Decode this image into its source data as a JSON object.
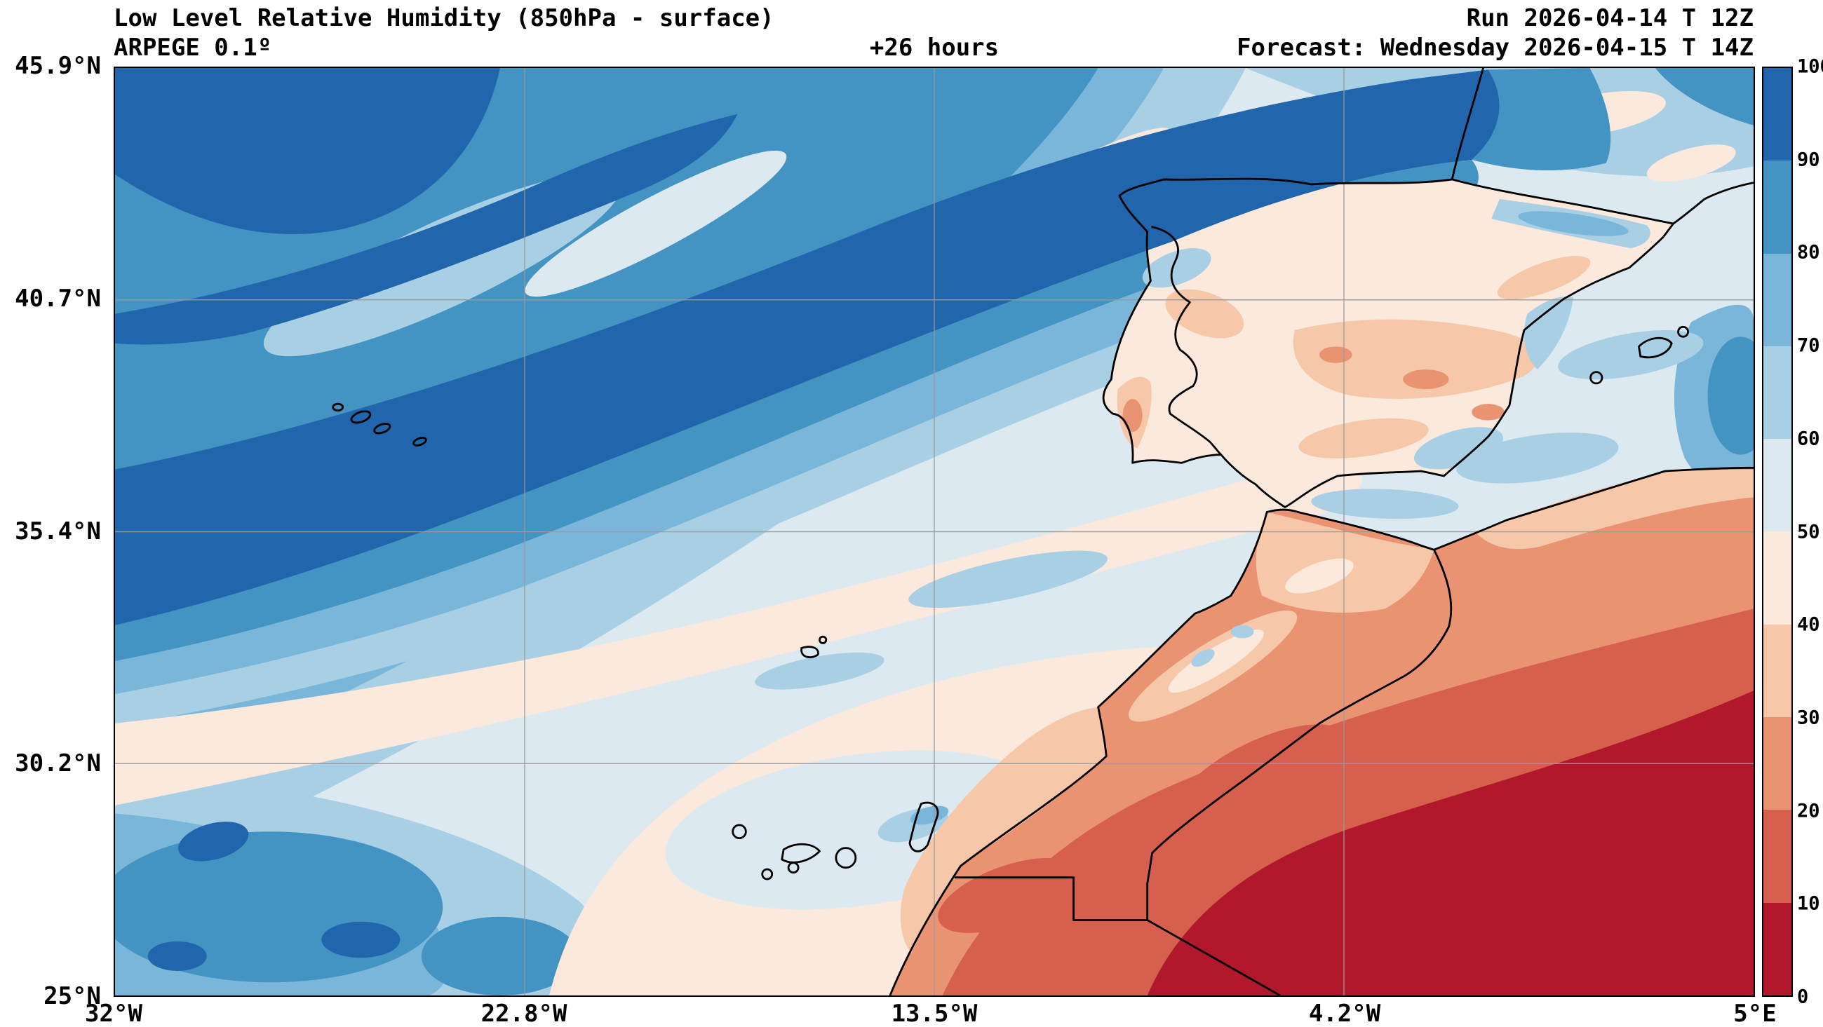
{
  "header": {
    "title": "Low Level Relative Humidity (850hPa - surface)",
    "model": "ARPEGE 0.1º",
    "lead_time": "+26 hours",
    "run": "Run 2026-04-14 T 12Z",
    "forecast": "Forecast: Wednesday 2026-04-15 T 14Z"
  },
  "axes": {
    "lat_ticks": [
      "45.9°N",
      "40.7°N",
      "35.4°N",
      "30.2°N",
      "25°N"
    ],
    "lon_ticks": [
      "32°W",
      "22.8°W",
      "13.5°W",
      "4.2°W",
      "5°E"
    ]
  },
  "colorbar": {
    "ticks": [
      "100",
      "90",
      "80",
      "70",
      "60",
      "50",
      "40",
      "30",
      "20",
      "10",
      "0"
    ],
    "band_colors": [
      "#2166ac",
      "#4393c3",
      "#7ab6d9",
      "#a8cfe4",
      "#dde9f1",
      "#fae9dc",
      "#f6c7a8",
      "#ea9372",
      "#d6604d",
      "#b2182b"
    ],
    "band_ranges": [
      "90-100",
      "80-90",
      "70-80",
      "60-70",
      "50-60",
      "40-50",
      "30-40",
      "20-30",
      "10-20",
      "0-10"
    ]
  },
  "chart_data": {
    "type": "heatmap",
    "variable": "Low Level Relative Humidity (850hPa - surface)",
    "model": "ARPEGE 0.1º",
    "run": "2026-04-14 12Z",
    "valid": "Wednesday 2026-04-15 14Z",
    "lead_hours": 26,
    "value_levels": [
      0,
      10,
      20,
      30,
      40,
      50,
      60,
      70,
      80,
      90,
      100
    ],
    "lat_range": [
      "25°N",
      "45.9°N"
    ],
    "lon_range": [
      "32°W",
      "5°E"
    ],
    "legend_position": "right",
    "grid": true,
    "features_estimated": [
      {
        "region": "NE Atlantic frontal band curving into NW Iberia and the Cantabrian coast",
        "humidity_pct": "90-100"
      },
      {
        "region": "Upper-left quadrant open Atlantic",
        "humidity_pct": "60-90"
      },
      {
        "region": "Subtropical Atlantic band southwest of Iberia",
        "humidity_pct": "40-50"
      },
      {
        "region": "Iberian Peninsula interior",
        "humidity_pct": "30-50"
      },
      {
        "region": "Pyrenees / eastern Spain coast / Balearic Sea",
        "humidity_pct": "50-70"
      },
      {
        "region": "Canary Islands area",
        "humidity_pct": "50-70"
      },
      {
        "region": "Morocco and Atlas region",
        "humidity_pct": "20-40"
      },
      {
        "region": "Sahara, southeast corner of domain",
        "humidity_pct": "0-20"
      },
      {
        "region": "Southwest Atlantic corner of domain",
        "humidity_pct": "60-90"
      }
    ]
  }
}
